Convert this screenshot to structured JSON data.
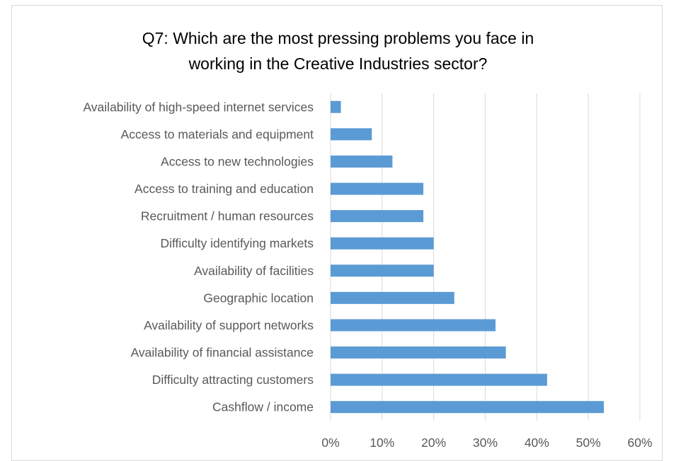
{
  "chart_data": {
    "type": "bar",
    "orientation": "horizontal",
    "title_lines": [
      "Q7: Which are the most pressing problems you face in",
      "working in the Creative Industries sector?"
    ],
    "categories": [
      "Availability of high-speed internet services",
      "Access to materials and equipment",
      "Access to new technologies",
      "Access to training and education",
      "Recruitment / human resources",
      "Difficulty identifying markets",
      "Availability of facilities",
      "Geographic location",
      "Availability of support networks",
      "Availability of financial assistance",
      "Difficulty attracting customers",
      "Cashflow / income"
    ],
    "values": [
      2,
      8,
      12,
      18,
      18,
      20,
      20,
      24,
      32,
      34,
      42,
      53
    ],
    "xlim": [
      0,
      60
    ],
    "xticks": [
      "0%",
      "10%",
      "20%",
      "30%",
      "40%",
      "50%",
      "60%"
    ],
    "grid": true,
    "bar_color": "#5b9bd5",
    "grid_color": "#d9d9d9"
  }
}
